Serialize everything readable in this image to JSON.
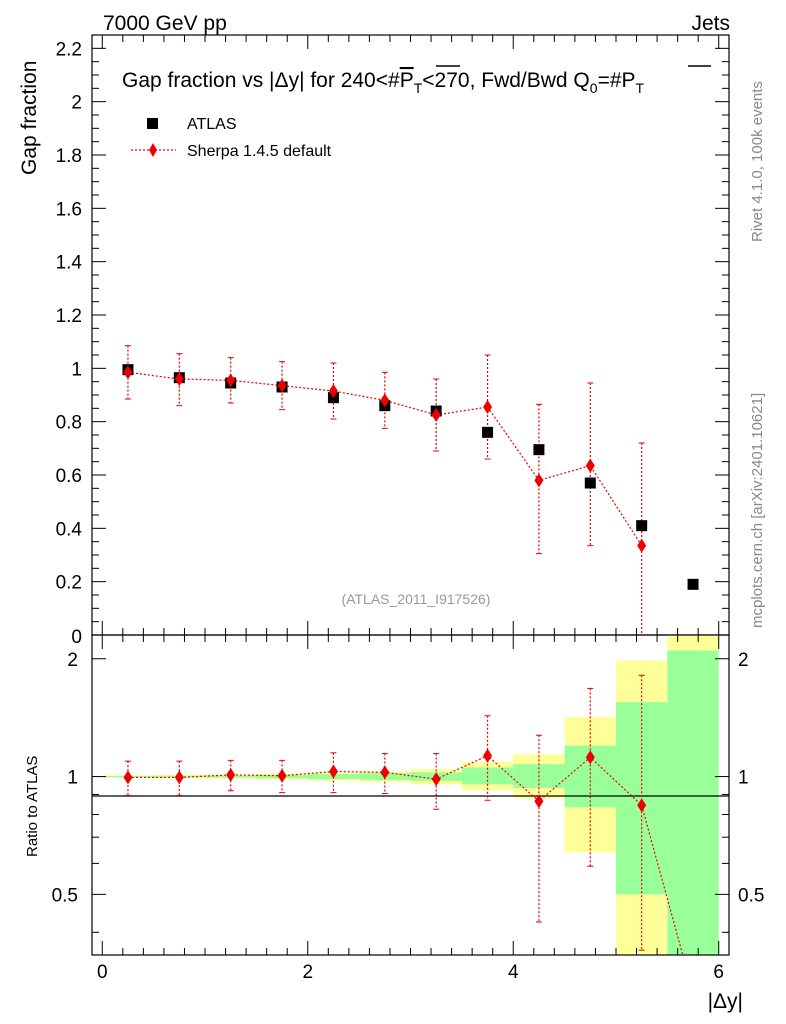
{
  "header": {
    "left": "7000 GeV pp",
    "right": "Jets"
  },
  "side": {
    "rivet": "Rivet 4.1.0,  100k events",
    "mcplots": "mcplots.cern.ch [arXiv:2401.10621]"
  },
  "colors": {
    "data": "#000000",
    "mc": "#ee0000",
    "band_inner": "#99ff99",
    "band_outer": "#ffff99"
  },
  "chart_data": [
    {
      "type": "scatter",
      "title": "Gap fraction vs |Δy| for 240<#P̅T<270, Fwd/Bwd Q0=#P̅T",
      "title_parts": {
        "a": "Gap fraction vs |",
        "b": "Δ",
        "c": "y| for 240<#",
        "d": "P",
        "e": "T",
        "f": "<270, Fwd/Bwd Q",
        "g": "0",
        "h": "=#",
        "i": "P",
        "j": "T"
      },
      "ylabel": "Gap fraction",
      "xlim": [
        -0.1,
        6.1
      ],
      "ylim": [
        0,
        2.25
      ],
      "yticks": [
        "0.2",
        "0.4",
        "0.6",
        "0.8",
        "1",
        "1.2",
        "1.4",
        "1.6",
        "1.8",
        "2",
        "2.2"
      ],
      "ytick_bottom": "0",
      "watermark": "(ATLAS_2011_I917526)",
      "legend": {
        "position": "top-left",
        "data": "ATLAS",
        "mc": "Sherpa 1.4.5 default"
      },
      "series": [
        {
          "name": "ATLAS",
          "marker": "square",
          "x": [
            0.25,
            0.75,
            1.25,
            1.75,
            2.25,
            2.75,
            3.25,
            3.75,
            4.25,
            4.75,
            5.25,
            5.75
          ],
          "y": [
            0.995,
            0.965,
            0.945,
            0.93,
            0.89,
            0.86,
            0.84,
            0.76,
            0.695,
            0.57,
            0.41,
            0.19
          ]
        },
        {
          "name": "Sherpa 1.4.5 default",
          "marker": "diamond",
          "x": [
            0.25,
            0.75,
            1.25,
            1.75,
            2.25,
            2.75,
            3.25,
            3.75,
            4.25,
            4.75,
            5.25
          ],
          "y": [
            0.985,
            0.96,
            0.955,
            0.935,
            0.915,
            0.88,
            0.825,
            0.855,
            0.58,
            0.635,
            0.335
          ],
          "err_up": [
            0.1,
            0.095,
            0.085,
            0.09,
            0.105,
            0.105,
            0.135,
            0.195,
            0.285,
            0.31,
            0.385
          ],
          "err_down": [
            0.1,
            0.1,
            0.085,
            0.09,
            0.105,
            0.105,
            0.135,
            0.195,
            0.275,
            0.3,
            0.335
          ]
        }
      ]
    },
    {
      "type": "scatter",
      "ylabel": "Ratio to ATLAS",
      "xlabel": "|Δy|",
      "xlim": [
        -0.1,
        6.1
      ],
      "ylim": [
        0.35,
        2.3
      ],
      "yscale": "log",
      "yticks": [
        "0.5",
        "1",
        "2"
      ],
      "xticks": [
        "0",
        "2",
        "4",
        "6"
      ],
      "bands": [
        {
          "x0": 0.0,
          "x1": 0.5,
          "inner": [
            0.996,
            1.004
          ],
          "outer": [
            0.993,
            1.007
          ]
        },
        {
          "x0": 0.5,
          "x1": 1.0,
          "inner": [
            0.995,
            1.005
          ],
          "outer": [
            0.99,
            1.01
          ]
        },
        {
          "x0": 1.0,
          "x1": 1.5,
          "inner": [
            0.994,
            1.006
          ],
          "outer": [
            0.988,
            1.012
          ]
        },
        {
          "x0": 1.5,
          "x1": 2.0,
          "inner": [
            0.99,
            1.01
          ],
          "outer": [
            0.982,
            1.018
          ]
        },
        {
          "x0": 2.0,
          "x1": 2.5,
          "inner": [
            0.985,
            1.015
          ],
          "outer": [
            0.975,
            1.025
          ]
        },
        {
          "x0": 2.5,
          "x1": 3.0,
          "inner": [
            0.98,
            1.02
          ],
          "outer": [
            0.968,
            1.032
          ]
        },
        {
          "x0": 3.0,
          "x1": 3.5,
          "inner": [
            0.975,
            1.025
          ],
          "outer": [
            0.955,
            1.045
          ]
        },
        {
          "x0": 3.5,
          "x1": 4.0,
          "inner": [
            0.955,
            1.055
          ],
          "outer": [
            0.92,
            1.09
          ]
        },
        {
          "x0": 4.0,
          "x1": 4.5,
          "inner": [
            0.935,
            1.075
          ],
          "outer": [
            0.88,
            1.14
          ]
        },
        {
          "x0": 4.5,
          "x1": 5.0,
          "inner": [
            0.835,
            1.2
          ],
          "outer": [
            0.64,
            1.42
          ]
        },
        {
          "x0": 5.0,
          "x1": 5.5,
          "inner": [
            0.5,
            1.55
          ],
          "outer": [
            0.35,
            1.98
          ]
        },
        {
          "x0": 5.5,
          "x1": 6.0,
          "inner": [
            0.35,
            2.1
          ],
          "outer": [
            0.35,
            2.3
          ]
        }
      ],
      "series": [
        {
          "name": "Sherpa 1.4.5 default / ATLAS",
          "marker": "diamond",
          "x": [
            0.25,
            0.75,
            1.25,
            1.75,
            2.25,
            2.75,
            3.25,
            3.75,
            4.25,
            4.75,
            5.25,
            5.65
          ],
          "y": [
            0.995,
            0.995,
            1.01,
            1.005,
            1.03,
            1.025,
            0.985,
            1.13,
            0.865,
            1.12,
            0.845,
            0.35
          ],
          "err_up": [
            0.1,
            0.1,
            0.09,
            0.095,
            0.12,
            0.12,
            0.16,
            0.3,
            0.41,
            0.56,
            0.97,
            0.0
          ],
          "err_down": [
            0.1,
            0.1,
            0.09,
            0.095,
            0.12,
            0.12,
            0.16,
            0.26,
            0.44,
            0.53,
            0.5,
            0.0
          ],
          "has_marker": [
            true,
            true,
            true,
            true,
            true,
            true,
            true,
            true,
            true,
            true,
            true,
            false
          ]
        }
      ]
    }
  ]
}
